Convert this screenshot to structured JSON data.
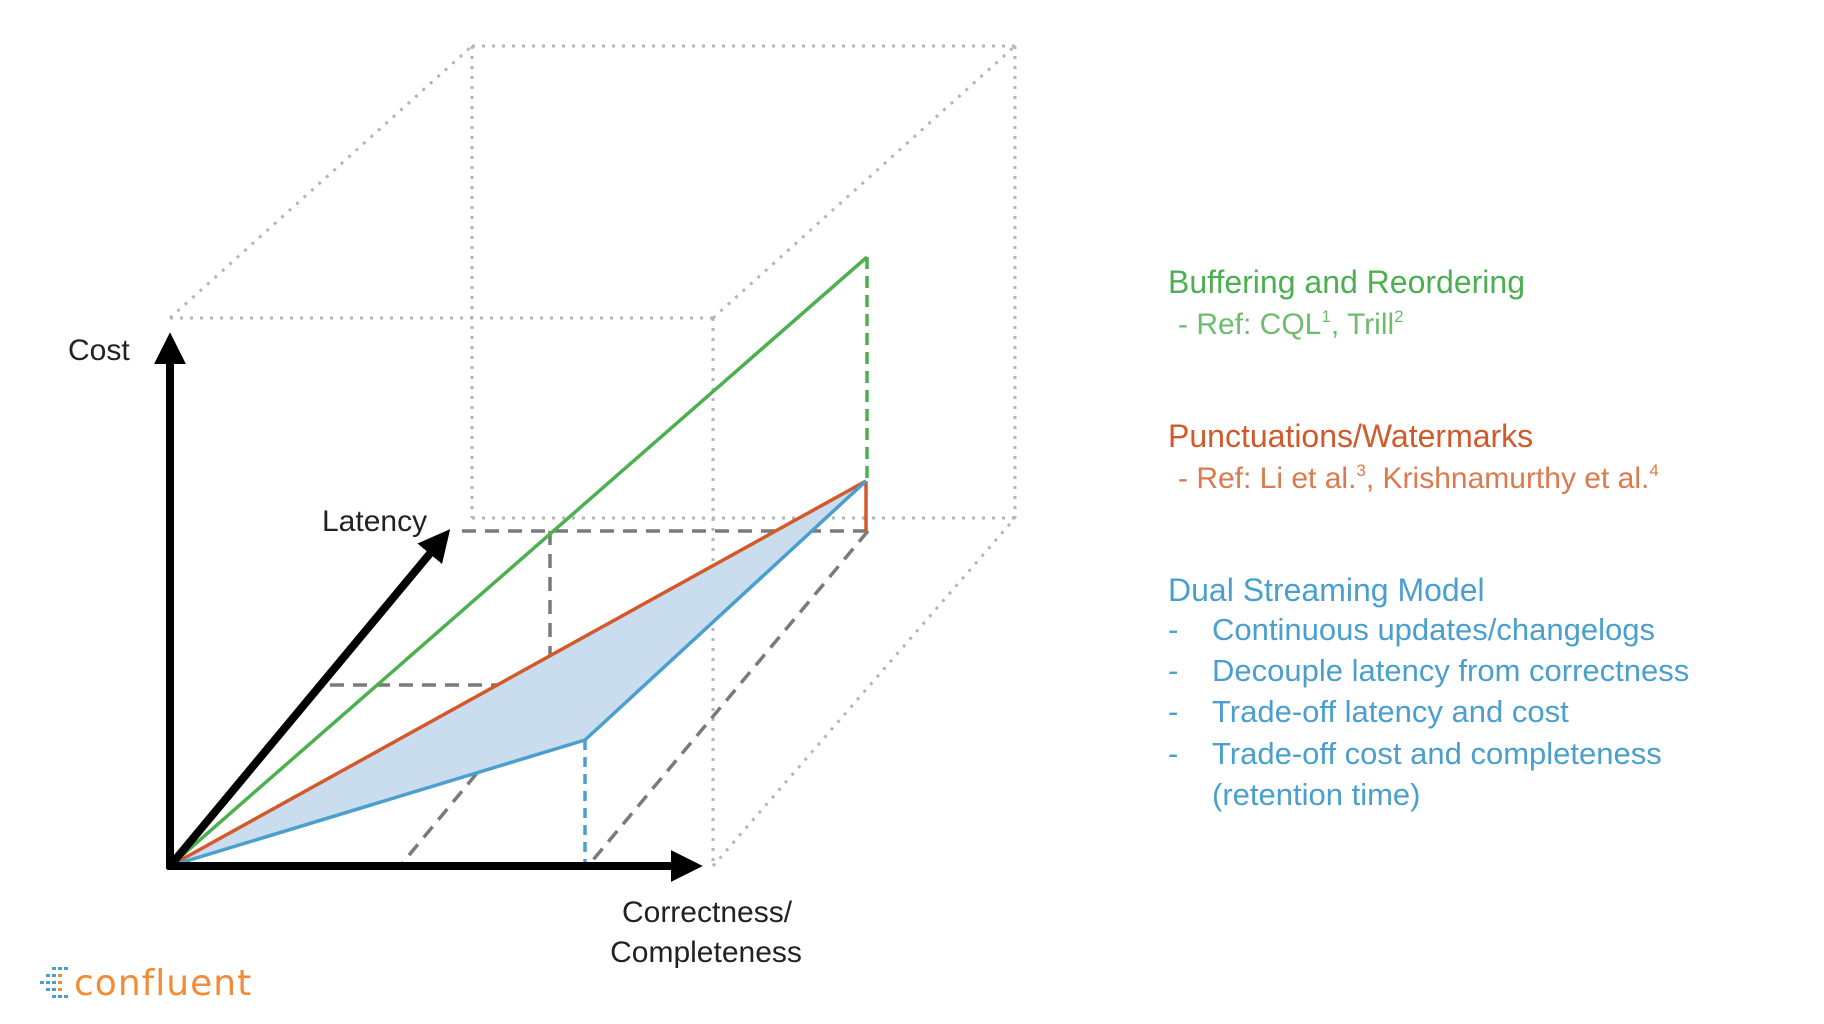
{
  "diagram": {
    "axis_labels": {
      "cost": "Cost",
      "latency": "Latency",
      "correctness_line1": "Correctness/",
      "correctness_line2": "Completeness"
    }
  },
  "legend": {
    "buffering": {
      "title": "Buffering and Reordering",
      "ref_prefix": "- Ref: CQL",
      "ref_sup1": "1",
      "ref_mid": ", Trill",
      "ref_sup2": "2",
      "color": "#4caf50"
    },
    "punctuations": {
      "title": "Punctuations/Watermarks",
      "ref_prefix": "- Ref: Li et al.",
      "ref_sup1": "3",
      "ref_mid": ", Krishnamurthy et al.",
      "ref_sup2": "4",
      "color": "#d2592a"
    },
    "dual": {
      "title": "Dual Streaming Model",
      "dash": "-",
      "bullets": [
        "Continuous updates/changelogs",
        "Decouple latency from correctness",
        "Trade-off latency and cost",
        "Trade-off cost and completeness",
        "(retention time)"
      ],
      "color": "#4a9fcf"
    }
  },
  "logo": {
    "text": "confluent",
    "color": "#f28c38"
  }
}
